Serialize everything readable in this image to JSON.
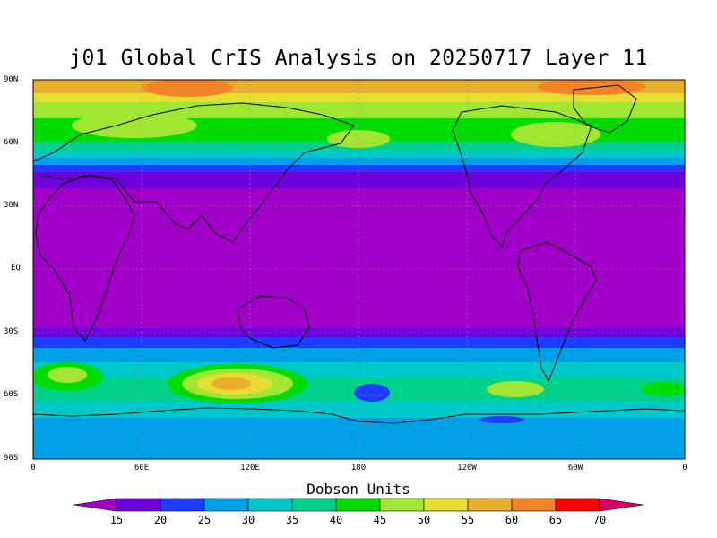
{
  "title": "j01 Global CrIS Analysis on 20250717 Layer 11",
  "map": {
    "lat_labels": [
      "90N",
      "60N",
      "30N",
      "EQ",
      "30S",
      "60S",
      "90S"
    ],
    "lon_labels": [
      "0",
      "60E",
      "120E",
      "180",
      "120W",
      "60W",
      "0"
    ]
  },
  "colorbar": {
    "title": "Dobson Units",
    "ticks": [
      "15",
      "20",
      "25",
      "30",
      "35",
      "40",
      "45",
      "50",
      "55",
      "60",
      "65",
      "70"
    ],
    "colors": [
      "#a000c8",
      "#6e00dc",
      "#1e3cff",
      "#00a0e6",
      "#00c8c8",
      "#00d28c",
      "#00dc00",
      "#a0e632",
      "#e6dc32",
      "#e6af2d",
      "#f08228",
      "#fa0000",
      "#dc0064"
    ]
  }
}
